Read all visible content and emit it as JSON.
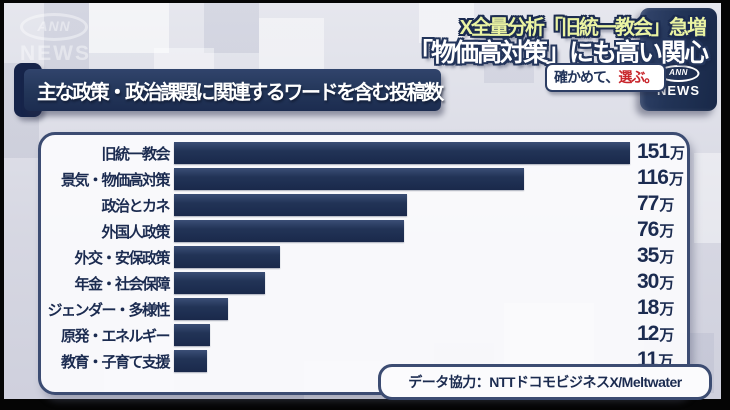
{
  "header": {
    "watermark": {
      "ann": "ANN",
      "news": "NEWS"
    },
    "headline_line1": "X全量分析「旧統一教会」急増",
    "headline_line2": "「物価高対策」にも高い関心",
    "slogan_dark": "確かめて、",
    "slogan_red": "選ぶ。",
    "badge": {
      "ann": "ANN",
      "news": "NEWS"
    }
  },
  "colors": {
    "bar_navy": "#1e3055",
    "panel_border": "#3c4c72",
    "headline_yellow": "#eaf3a2",
    "slogan_red": "#c8262c",
    "value_text_navy": "#1b2b50"
  },
  "chart_data": {
    "type": "bar",
    "orientation": "horizontal",
    "title": "主な政策・政治課題に関連するワードを含む投稿数",
    "categories": [
      "旧統一教会",
      "景気・物価高対策",
      "政治とカネ",
      "外国人政策",
      "外交・安保政策",
      "年金・社会保障",
      "ジェンダー・多様性",
      "原発・エネルギー",
      "教育・子育て支援"
    ],
    "values": [
      151,
      116,
      77,
      76,
      35,
      30,
      18,
      12,
      11
    ],
    "unit": "万",
    "value_labels": [
      "151万",
      "116万",
      "77万",
      "76万",
      "35万",
      "30万",
      "18万",
      "12万",
      "11万"
    ],
    "xlim": [
      0,
      160
    ],
    "grid": false,
    "legend": "none",
    "bar_color": "#1e3055",
    "credit": "データ協力：NTTドコモビジネスX/Meltwater"
  }
}
